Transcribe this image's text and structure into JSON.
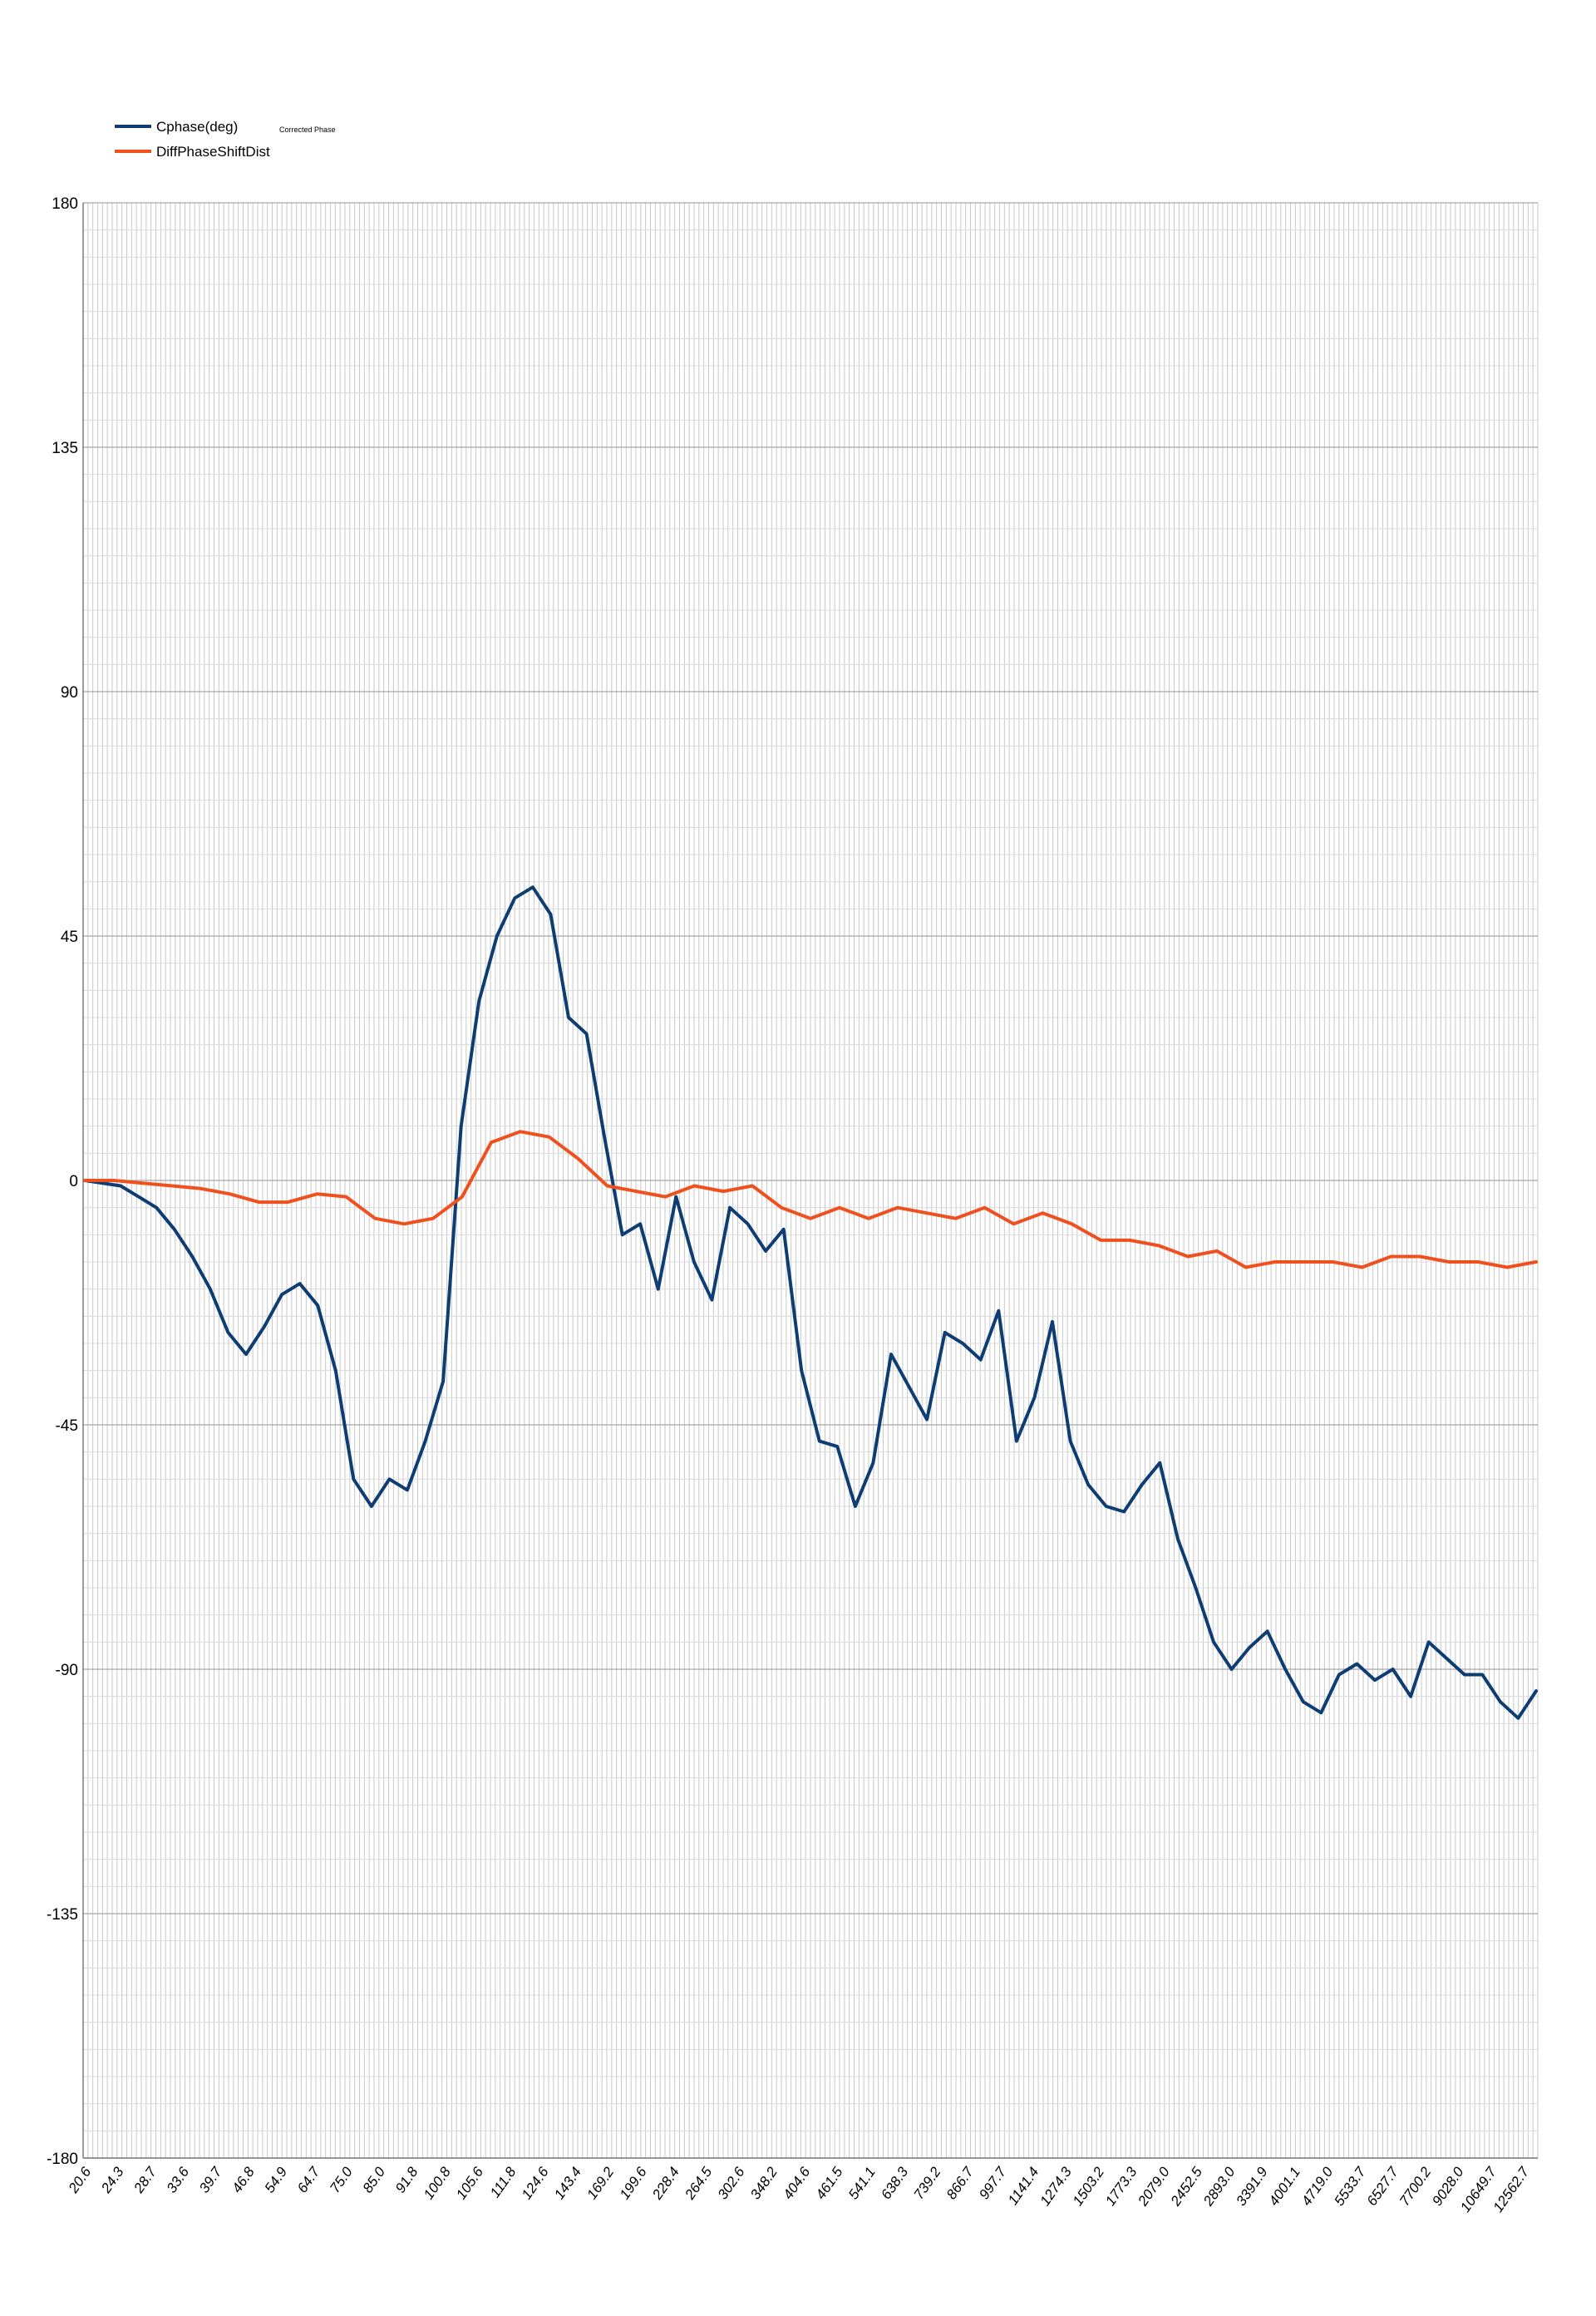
{
  "chart_data": {
    "type": "line",
    "title": "",
    "xlabel": "",
    "ylabel": "",
    "annotation": "Corrected Phase",
    "ylim": [
      -180,
      180
    ],
    "yticks": [
      "180",
      "135",
      "90",
      "45",
      "0",
      "-45",
      "-90",
      "-135",
      "-180"
    ],
    "grid": true,
    "legend_position": "top-left",
    "xtick_labels": [
      "20.6",
      "24.3",
      "28.7",
      "33.6",
      "39.7",
      "46.8",
      "54.9",
      "64.7",
      "75.0",
      "85.0",
      "91.8",
      "100.8",
      "105.6",
      "111.8",
      "124.6",
      "143.4",
      "169.2",
      "199.6",
      "228.4",
      "264.5",
      "302.6",
      "348.2",
      "404.6",
      "461.5",
      "541.1",
      "638.3",
      "739.2",
      "866.7",
      "997.7",
      "1141.4",
      "1274.3",
      "1503.2",
      "1773.3",
      "2079.0",
      "2452.5",
      "2893.0",
      "3391.9",
      "4001.1",
      "4719.0",
      "5533.7",
      "6527.7",
      "7700.2",
      "9028.0",
      "10649.7",
      "12562.7"
    ],
    "series": [
      {
        "name": "Cphase(deg)",
        "color": "#0e3d73",
        "values": [
          0,
          -0.5,
          -1,
          -3,
          -5,
          -9,
          -14,
          -20,
          -28,
          -32,
          -27,
          -21,
          -19,
          -23,
          -35,
          -55,
          -60,
          -55,
          -57,
          -48,
          -37,
          10,
          33,
          45,
          52,
          54,
          49,
          30,
          27,
          8,
          -10,
          -8,
          -20,
          -3,
          -15,
          -22,
          -5,
          -8,
          -13,
          -9,
          -35,
          -48,
          -49,
          -60,
          -52,
          -32,
          -38,
          -44,
          -28,
          -30,
          -33,
          -24,
          -48,
          -40,
          -26,
          -48,
          -56,
          -60,
          -61,
          -56,
          -52,
          -66,
          -75,
          -85,
          -90,
          -86,
          -83,
          -90,
          -96,
          -98,
          -91,
          -89,
          -92,
          -90,
          -95,
          -85,
          -88,
          -91,
          -91,
          -96,
          -99,
          -94
        ]
      },
      {
        "name": "DiffPhaseShiftDist",
        "color": "#f0501e",
        "values": [
          0,
          0,
          -0.5,
          -1,
          -1.5,
          -2.5,
          -4,
          -4,
          -2.5,
          -3,
          -7,
          -8,
          -7,
          -3,
          7,
          9,
          8,
          4,
          -1,
          -2,
          -3,
          -1,
          -2,
          -1,
          -5,
          -7,
          -5,
          -7,
          -5,
          -6,
          -7,
          -5,
          -8,
          -6,
          -8,
          -11,
          -11,
          -12,
          -14,
          -13,
          -16,
          -15,
          -15,
          -15,
          -16,
          -14,
          -14,
          -15,
          -15,
          -16,
          -15
        ]
      }
    ]
  }
}
